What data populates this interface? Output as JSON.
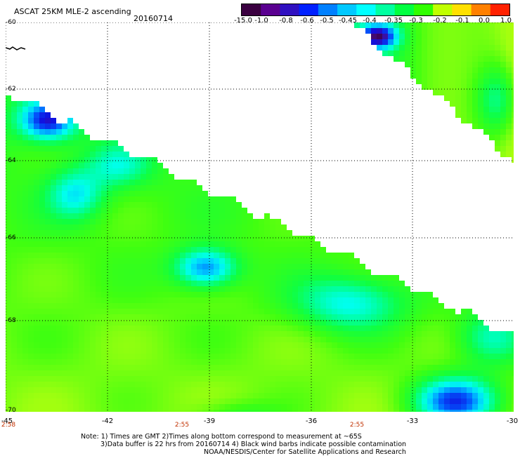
{
  "header": {
    "title": "ASCAT 25KM MLE-2 ascending",
    "date": "20160714"
  },
  "colorbar": {
    "labels": [
      "-15.0",
      "-1.0",
      "-0.8",
      "-0.6",
      "-0.5",
      "-0.45",
      "-0.4",
      "-0.35",
      "-0.3",
      "-0.2",
      "-0.1",
      "0.0",
      "1.0"
    ],
    "colors": [
      "#3a0040",
      "#5a0090",
      "#3010c0",
      "#0020ff",
      "#0080ff",
      "#00c8ff",
      "#00ffff",
      "#00ffa0",
      "#00ff40",
      "#30ff00",
      "#c0ff00",
      "#ffe000",
      "#ff8000",
      "#ff2000"
    ]
  },
  "map": {
    "lat_labels": [
      "-60",
      "-62",
      "-64",
      "-66",
      "-68",
      "-70"
    ],
    "lon_labels": [
      "-45",
      "-42",
      "-39",
      "-36",
      "-33",
      "-30"
    ],
    "time_labels": [
      "2:58",
      "2:55",
      "2:55"
    ],
    "lon_range": [
      -45,
      -30
    ],
    "lat_range": [
      -70,
      -60
    ]
  },
  "notes": {
    "line1": "Note: 1) Times are GMT 2)Times along bottom correspond to measurement at ~65S",
    "line2": "3)Data buffer is 22 hrs from 20160714 4) Black wind barbs indicate possible contamination",
    "line3": "NOAA/NESDIS/Center for Satellite Applications and Research"
  }
}
